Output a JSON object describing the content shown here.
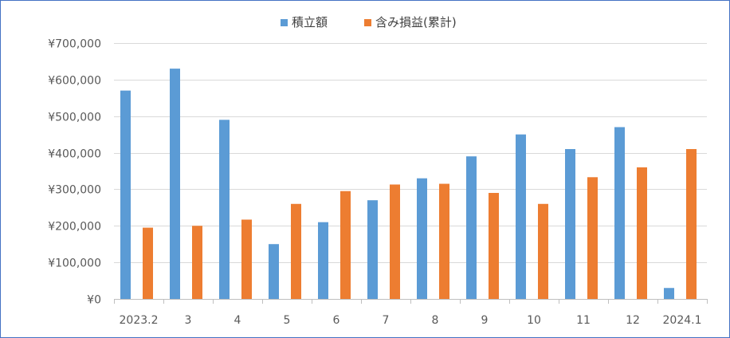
{
  "chart_data": {
    "type": "bar",
    "title": "",
    "xlabel": "",
    "ylabel": "",
    "categories": [
      "2023.2",
      "3",
      "4",
      "5",
      "6",
      "7",
      "8",
      "9",
      "10",
      "11",
      "12",
      "2024.1"
    ],
    "series": [
      {
        "name": "積立額",
        "color": "#5b9bd5",
        "values": [
          570000,
          630000,
          490000,
          150000,
          210000,
          270000,
          330000,
          390000,
          450000,
          410000,
          470000,
          30000
        ]
      },
      {
        "name": "含み損益(累計)",
        "color": "#ed7d31",
        "values": [
          195000,
          200000,
          217000,
          260000,
          295000,
          313000,
          315000,
          290000,
          260000,
          333000,
          360000,
          410000
        ]
      }
    ],
    "ylim": [
      0,
      700000
    ],
    "yticks": [
      0,
      100000,
      200000,
      300000,
      400000,
      500000,
      600000,
      700000
    ],
    "ytick_labels": [
      "¥0",
      "¥100,000",
      "¥200,000",
      "¥300,000",
      "¥400,000",
      "¥500,000",
      "¥600,000",
      "¥700,000"
    ],
    "grid": true,
    "legend_position": "top"
  }
}
